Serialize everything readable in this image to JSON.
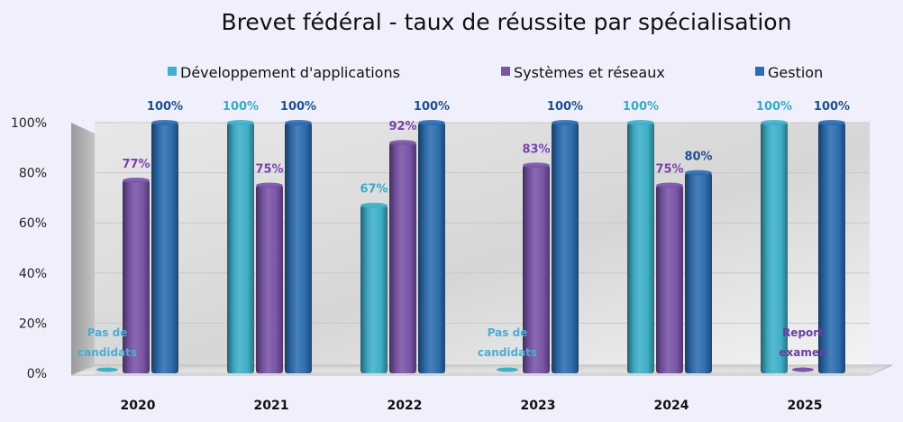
{
  "chart_data": {
    "type": "bar",
    "title": "Brevet fédéral - taux de réussite par spécialisation",
    "categories": [
      "2020",
      "2021",
      "2022",
      "2023",
      "2024",
      "2025"
    ],
    "ylim": [
      0,
      100
    ],
    "yticks": [
      0,
      20,
      40,
      60,
      80,
      100
    ],
    "ytick_labels": [
      "0%",
      "20%",
      "40%",
      "60%",
      "80%",
      "100%"
    ],
    "legend_position": "top",
    "series": [
      {
        "name": "Développement d'applications",
        "color": "#3fb0c8",
        "values": [
          0,
          100,
          67,
          0,
          100,
          100
        ],
        "labels": [
          "",
          "100%",
          "67%",
          "",
          "100%",
          "100%"
        ]
      },
      {
        "name": "Systèmes et réseaux",
        "color": "#7a55a8",
        "values": [
          77,
          75,
          92,
          83,
          75,
          0
        ],
        "labels": [
          "77%",
          "75%",
          "92%",
          "83%",
          "75%",
          ""
        ]
      },
      {
        "name": "Gestion",
        "color": "#2e6db0",
        "values": [
          100,
          100,
          100,
          100,
          80,
          100
        ],
        "labels": [
          "100%",
          "100%",
          "100%",
          "100%",
          "80%",
          "100%"
        ]
      }
    ],
    "annotations": [
      {
        "category": "2020",
        "series": 0,
        "lines": [
          "Pas de",
          "candidats"
        ],
        "color": "#4aaed0"
      },
      {
        "category": "2023",
        "series": 0,
        "lines": [
          "Pas de",
          "candidats"
        ],
        "color": "#4aaed0"
      },
      {
        "category": "2025",
        "series": 1,
        "lines": [
          "Report",
          "examen"
        ],
        "color": "#6a3fa0"
      }
    ]
  }
}
